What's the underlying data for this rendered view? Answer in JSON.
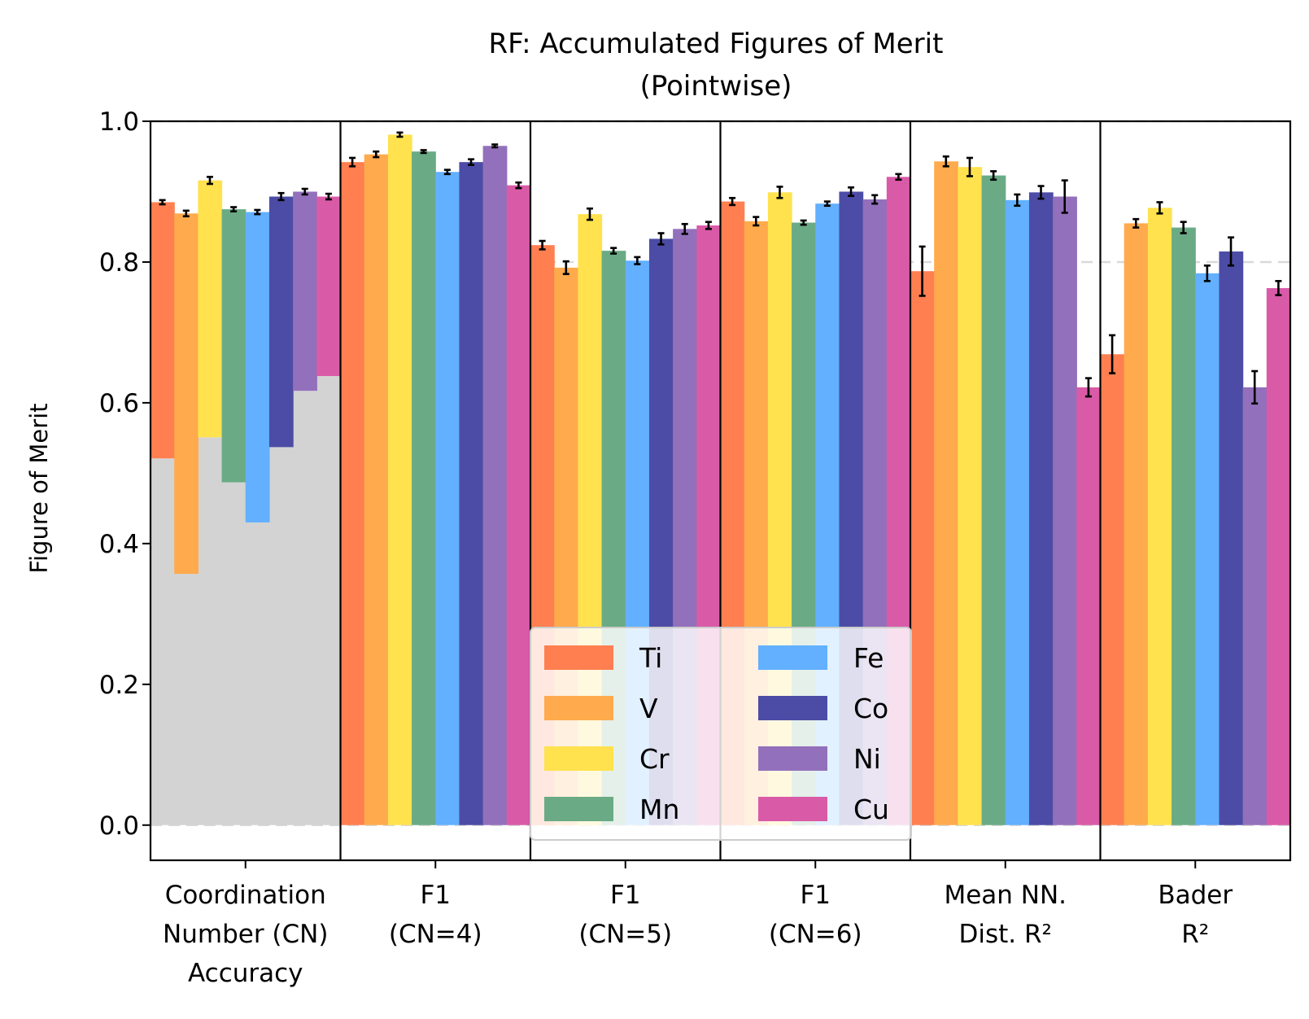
{
  "chart_data": {
    "type": "bar",
    "title": "RF: Accumulated Figures of Merit",
    "subtitle": "(Pointwise)",
    "xlabel": "",
    "ylabel": "Figure of Merit",
    "ylim": [
      -0.05,
      1.0
    ],
    "yticks": [
      "0.0",
      "0.2",
      "0.4",
      "0.6",
      "0.8",
      "1.0"
    ],
    "grid": "horizontal dashed",
    "legend_position": "lower center",
    "categories": [
      {
        "lines": [
          "Coordination",
          "Number (CN)",
          "Accuracy"
        ]
      },
      {
        "lines": [
          "F1",
          "(CN=4)"
        ]
      },
      {
        "lines": [
          "F1",
          "(CN=5)"
        ]
      },
      {
        "lines": [
          "F1",
          "(CN=6)"
        ]
      },
      {
        "lines": [
          "Mean NN.",
          "Dist. R²"
        ]
      },
      {
        "lines": [
          "Bader",
          "R²"
        ]
      }
    ],
    "series": [
      {
        "name": "Ti",
        "color": "#ff7f50",
        "values": [
          0.885,
          0.942,
          0.824,
          0.886,
          0.787,
          0.669
        ],
        "errors": [
          0.003,
          0.006,
          0.006,
          0.005,
          0.035,
          0.027
        ]
      },
      {
        "name": "V",
        "color": "#ffaa4d",
        "values": [
          0.869,
          0.953,
          0.792,
          0.858,
          0.943,
          0.855
        ],
        "errors": [
          0.004,
          0.004,
          0.009,
          0.006,
          0.007,
          0.006
        ]
      },
      {
        "name": "Cr",
        "color": "#ffe24d",
        "values": [
          0.916,
          0.981,
          0.868,
          0.899,
          0.935,
          0.877
        ],
        "errors": [
          0.005,
          0.003,
          0.008,
          0.008,
          0.013,
          0.008
        ]
      },
      {
        "name": "Mn",
        "color": "#6aab85",
        "values": [
          0.875,
          0.957,
          0.816,
          0.856,
          0.923,
          0.849
        ],
        "errors": [
          0.003,
          0.002,
          0.004,
          0.003,
          0.006,
          0.008
        ]
      },
      {
        "name": "Fe",
        "color": "#62b0ff",
        "values": [
          0.871,
          0.928,
          0.802,
          0.883,
          0.888,
          0.784
        ],
        "errors": [
          0.003,
          0.003,
          0.005,
          0.003,
          0.008,
          0.011
        ]
      },
      {
        "name": "Co",
        "color": "#4c4ca6",
        "values": [
          0.893,
          0.942,
          0.833,
          0.9,
          0.899,
          0.815
        ],
        "errors": [
          0.005,
          0.004,
          0.008,
          0.006,
          0.009,
          0.02
        ]
      },
      {
        "name": "Ni",
        "color": "#9370bb",
        "values": [
          0.9,
          0.965,
          0.847,
          0.889,
          0.893,
          0.622
        ],
        "errors": [
          0.004,
          0.002,
          0.007,
          0.006,
          0.023,
          0.023
        ]
      },
      {
        "name": "Cu",
        "color": "#d95ba8",
        "values": [
          0.893,
          0.909,
          0.852,
          0.921,
          0.622,
          0.763
        ],
        "errors": [
          0.004,
          0.004,
          0.005,
          0.004,
          0.013,
          0.01
        ]
      }
    ],
    "baseline": {
      "category_index": 0,
      "color": "#d3d3d3",
      "values": [
        0.521,
        0.357,
        0.551,
        0.487,
        0.43,
        0.537,
        0.617,
        0.638
      ]
    }
  }
}
